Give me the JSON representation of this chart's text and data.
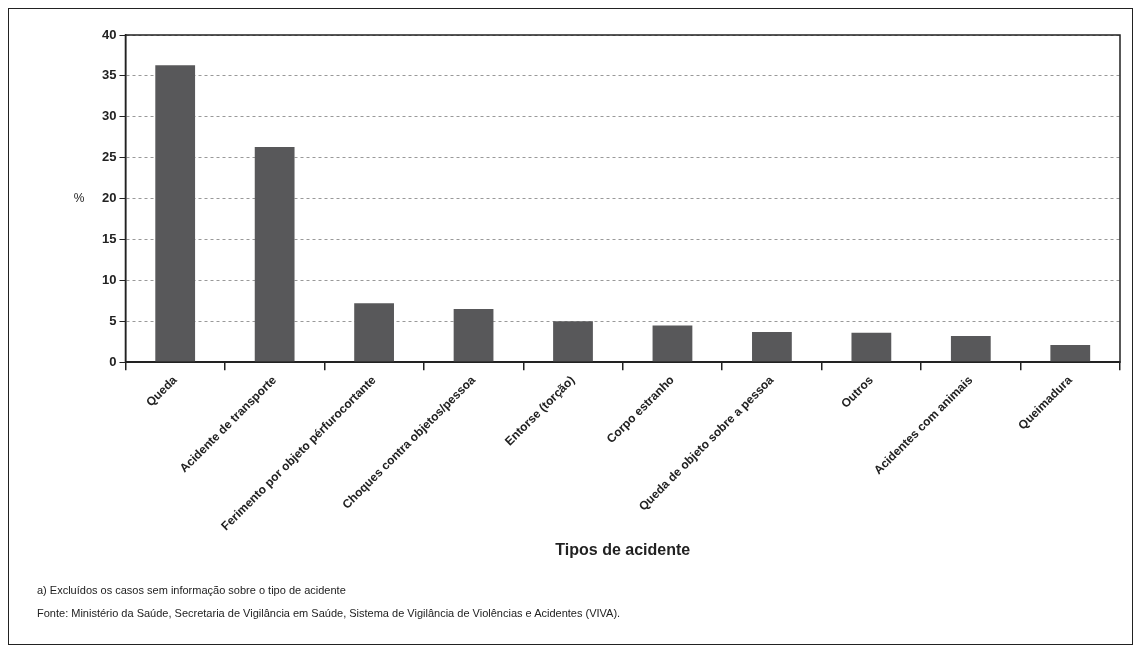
{
  "chart_data": {
    "type": "bar",
    "xlabel": "Tipos de acidente",
    "ylabel": "%",
    "categories": [
      "Queda",
      "Acidente de transporte",
      "Ferimento por objeto pérfurocortante",
      "Choques contra objetos/pessoa",
      "Entorse (torção)",
      "Corpo estranho",
      "Queda de objeto sobre a pessoa",
      "Outros",
      "Acidentes com animais",
      "Queimadura"
    ],
    "values": [
      36.3,
      26.3,
      7.2,
      6.5,
      5.0,
      4.5,
      3.7,
      3.6,
      3.2,
      2.1
    ],
    "color": "#58585a",
    "ylim": [
      0,
      40
    ],
    "yticks": [
      0,
      5,
      10,
      15,
      20,
      25,
      30,
      35,
      40
    ],
    "grid": "y",
    "legend": false,
    "annotations": [
      "a) Excluídos os casos sem informação sobre o tipo de acidente",
      "Fonte: Ministério da Saúde, Secretaria de Vigilância em Saúde, Sistema de Vigilância de Violências e Acidentes (VIVA)."
    ]
  }
}
